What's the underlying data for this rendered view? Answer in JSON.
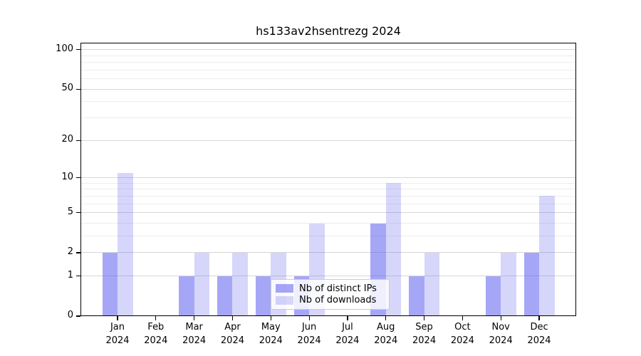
{
  "title": "hs133av2hsentrezg 2024",
  "legend": {
    "items": [
      {
        "label": "Nb of distinct IPs",
        "swatch": "ips"
      },
      {
        "label": "Nb of downloads",
        "swatch": "downloads"
      }
    ]
  },
  "colors": {
    "ips_fill": "rgba(85,85,240,0.52)",
    "downloads_fill": "rgba(85,85,240,0.24)",
    "major_grid": "#d6d6d6",
    "minor_grid": "#ededed",
    "spine": "#000000"
  },
  "chart_data": {
    "type": "bar",
    "title": "hs133av2hsentrezg 2024",
    "categories": [
      {
        "month": "Jan",
        "year": "2024"
      },
      {
        "month": "Feb",
        "year": "2024"
      },
      {
        "month": "Mar",
        "year": "2024"
      },
      {
        "month": "Apr",
        "year": "2024"
      },
      {
        "month": "May",
        "year": "2024"
      },
      {
        "month": "Jun",
        "year": "2024"
      },
      {
        "month": "Jul",
        "year": "2024"
      },
      {
        "month": "Aug",
        "year": "2024"
      },
      {
        "month": "Sep",
        "year": "2024"
      },
      {
        "month": "Oct",
        "year": "2024"
      },
      {
        "month": "Nov",
        "year": "2024"
      },
      {
        "month": "Dec",
        "year": "2024"
      }
    ],
    "series": [
      {
        "name": "Nb of distinct IPs",
        "values": [
          2,
          0,
          1,
          1,
          1,
          1,
          0,
          4,
          1,
          0,
          1,
          2
        ]
      },
      {
        "name": "Nb of downloads",
        "values": [
          11,
          0,
          2,
          2,
          2,
          4,
          0,
          9,
          2,
          0,
          2,
          7
        ]
      }
    ],
    "xlabel": "",
    "ylabel": "",
    "yscale": "log1p",
    "ylim": [
      0,
      113
    ],
    "yticks_major": [
      0,
      1,
      2,
      5,
      10,
      20,
      50,
      100
    ],
    "yticks_minor": [
      3,
      4,
      6,
      7,
      8,
      9,
      30,
      40,
      60,
      70,
      80,
      90
    ],
    "grid": true,
    "legend_position": "lower-center-inside"
  }
}
